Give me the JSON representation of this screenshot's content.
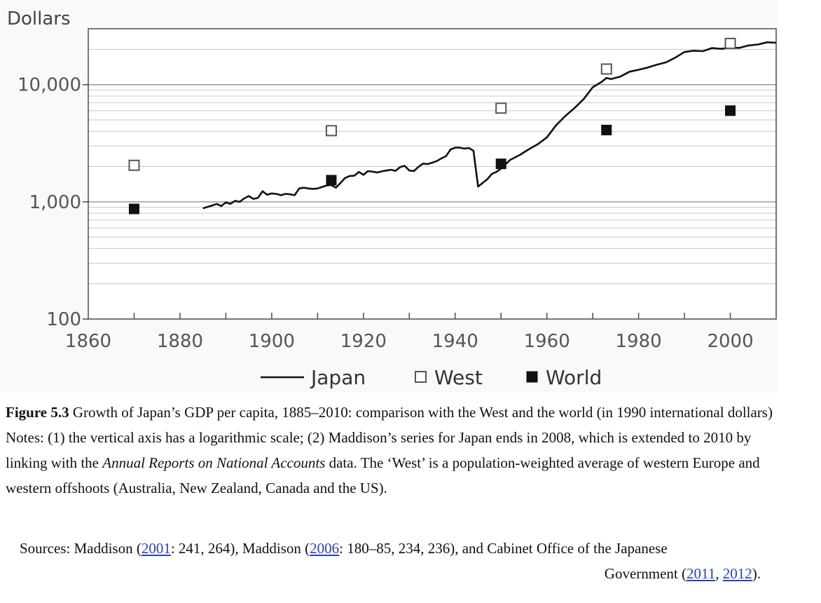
{
  "chart_data": {
    "type": "line",
    "ylabel": "Dollars",
    "y_scale": "log",
    "ylim": [
      100,
      30000
    ],
    "xlim": [
      1860,
      2010
    ],
    "y_ticks": [
      {
        "value": 100,
        "label": "100"
      },
      {
        "value": 1000,
        "label": "1,000"
      },
      {
        "value": 10000,
        "label": "10,000"
      }
    ],
    "x_ticks": [
      {
        "value": 1860,
        "label": "1860"
      },
      {
        "value": 1880,
        "label": "1880"
      },
      {
        "value": 1900,
        "label": "1900"
      },
      {
        "value": 1920,
        "label": "1920"
      },
      {
        "value": 1940,
        "label": "1940"
      },
      {
        "value": 1960,
        "label": "1960"
      },
      {
        "value": 1980,
        "label": "1980"
      },
      {
        "value": 2000,
        "label": "2000"
      }
    ],
    "grid": true,
    "legend_position": "bottom",
    "series": [
      {
        "name": "Japan",
        "style": "line",
        "color": "#111111",
        "x": [
          1885,
          1887,
          1888,
          1889,
          1890,
          1891,
          1892,
          1893,
          1894,
          1895,
          1896,
          1897,
          1898,
          1899,
          1900,
          1901,
          1902,
          1903,
          1904,
          1905,
          1906,
          1907,
          1908,
          1909,
          1910,
          1911,
          1912,
          1913,
          1914,
          1915,
          1916,
          1917,
          1918,
          1919,
          1920,
          1921,
          1922,
          1923,
          1924,
          1925,
          1926,
          1927,
          1928,
          1929,
          1930,
          1931,
          1932,
          1933,
          1934,
          1935,
          1936,
          1937,
          1938,
          1939,
          1940,
          1941,
          1942,
          1943,
          1944,
          1945,
          1946,
          1947,
          1948,
          1949,
          1950,
          1952,
          1954,
          1956,
          1958,
          1960,
          1962,
          1964,
          1966,
          1968,
          1970,
          1972,
          1973,
          1974,
          1976,
          1978,
          1980,
          1982,
          1984,
          1986,
          1988,
          1990,
          1992,
          1994,
          1996,
          1998,
          2000,
          2002,
          2004,
          2006,
          2008,
          2010
        ],
        "y": [
          880,
          930,
          960,
          920,
          990,
          960,
          1020,
          1000,
          1070,
          1120,
          1060,
          1080,
          1230,
          1150,
          1180,
          1170,
          1140,
          1170,
          1160,
          1140,
          1300,
          1320,
          1300,
          1290,
          1300,
          1340,
          1380,
          1390,
          1320,
          1450,
          1600,
          1660,
          1670,
          1800,
          1700,
          1830,
          1810,
          1780,
          1820,
          1850,
          1880,
          1840,
          1980,
          2030,
          1850,
          1830,
          1990,
          2120,
          2100,
          2160,
          2230,
          2350,
          2450,
          2800,
          2900,
          2900,
          2850,
          2880,
          2730,
          1350,
          1450,
          1560,
          1730,
          1800,
          1920,
          2280,
          2500,
          2800,
          3100,
          3550,
          4500,
          5400,
          6300,
          7500,
          9500,
          10600,
          11400,
          11150,
          11700,
          12900,
          13400,
          14000,
          14800,
          15500,
          17000,
          19000,
          19500,
          19300,
          20500,
          20200,
          20700,
          20600,
          21600,
          22000,
          23000,
          22800
        ]
      },
      {
        "name": "West",
        "style": "open-square",
        "color": "#555555",
        "x": [
          1870,
          1913,
          1950,
          1973,
          2000
        ],
        "y": [
          2050,
          4050,
          6300,
          13600,
          22500
        ]
      },
      {
        "name": "World",
        "style": "filled-square",
        "color": "#111111",
        "x": [
          1870,
          1913,
          1950,
          1973,
          2000
        ],
        "y": [
          870,
          1530,
          2110,
          4100,
          6000
        ]
      }
    ]
  },
  "caption": {
    "figure_label": "Figure 5.3",
    "figure_text": " Growth of Japan’s GDP per capita, 1885–2010: comparison with the West and the world (in 1990 international dollars)",
    "notes_a": "Notes: (1) the vertical axis has a logarithmic scale; (2) Maddison’s series for Japan ends in 2008, which is extended to 2010 by linking with the ",
    "notes_italic": "Annual Reports on National Accounts",
    "notes_b": " data. The ‘West’ is a population-weighted average of western Europe and western offshoots (Australia, New Zealand, Canada and the US)."
  },
  "sources": {
    "t1": "Sources: Maddison (",
    "cite1": "2001",
    "t2": ": 241, 264), Maddison (",
    "cite2": "2006",
    "t3": ": 180–85, 234, 236), and Cabinet Office of the Japanese",
    "t4": "Government (",
    "cite3": "2011",
    "t5": ", ",
    "cite4": "2012",
    "t6": ")."
  }
}
